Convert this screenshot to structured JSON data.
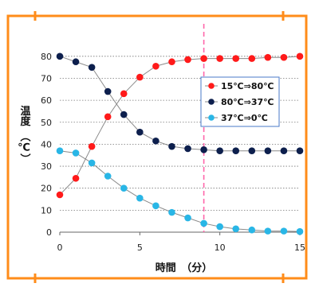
{
  "chart_data": {
    "type": "line",
    "title": "",
    "xlabel": "時間　（分）",
    "ylabel": "温度　（℃）",
    "xlim": [
      0,
      15
    ],
    "ylim": [
      0,
      85
    ],
    "xticks": [
      0,
      5,
      10,
      15
    ],
    "yticks": [
      0,
      10,
      20,
      30,
      40,
      50,
      60,
      70,
      80
    ],
    "grid": "horizontal-dotted",
    "legend_position": "right",
    "reference_line": {
      "x": 9,
      "color": "#ff66aa",
      "style": "dashed"
    },
    "frame_color": "#ff8c1a",
    "series": [
      {
        "name": "15℃⇒80℃",
        "color": "#ff1a1a",
        "x": [
          0,
          1,
          2,
          3,
          4,
          5,
          6,
          7,
          8,
          9,
          10,
          11,
          12,
          13,
          14,
          15
        ],
        "values": [
          17,
          24.5,
          39,
          52.5,
          63,
          70.5,
          75.5,
          77.5,
          78.5,
          79,
          79,
          79,
          79,
          79.5,
          79.5,
          80
        ]
      },
      {
        "name": "80℃⇒37℃",
        "color": "#0d1f4d",
        "x": [
          0,
          1,
          2,
          3,
          4,
          5,
          6,
          7,
          8,
          9,
          10,
          11,
          12,
          13,
          14,
          15
        ],
        "values": [
          80,
          77.5,
          75,
          64,
          53.5,
          45.5,
          41.5,
          39,
          38,
          37.5,
          37,
          37,
          37,
          37,
          37,
          37
        ]
      },
      {
        "name": "37℃⇒0℃",
        "color": "#29b6e6",
        "x": [
          0,
          1,
          2,
          3,
          4,
          5,
          6,
          7,
          8,
          9,
          10,
          11,
          12,
          13,
          14,
          15
        ],
        "values": [
          37,
          36,
          31.5,
          25.5,
          20,
          15.5,
          12,
          9,
          6.5,
          4,
          2.5,
          1.5,
          1,
          0.5,
          0.5,
          0.3
        ]
      }
    ]
  }
}
